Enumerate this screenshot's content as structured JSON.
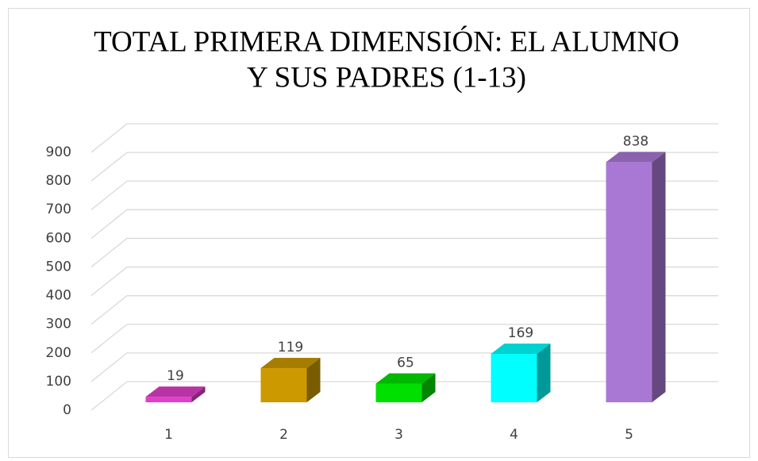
{
  "chart_data": {
    "type": "bar3d",
    "title": [
      "TOTAL PRIMERA DIMENSIÓN: EL ALUMNO",
      "Y SUS PADRES (1-13)"
    ],
    "categories": [
      "1",
      "2",
      "3",
      "4",
      "5"
    ],
    "values": [
      19,
      119,
      65,
      169,
      838
    ],
    "colors": [
      "#e040c8",
      "#cc9900",
      "#00e000",
      "#00ffff",
      "#a978d4"
    ],
    "ylim": [
      0,
      900
    ],
    "yticks": [
      0,
      100,
      200,
      300,
      400,
      500,
      600,
      700,
      800,
      900
    ],
    "grid": true
  }
}
